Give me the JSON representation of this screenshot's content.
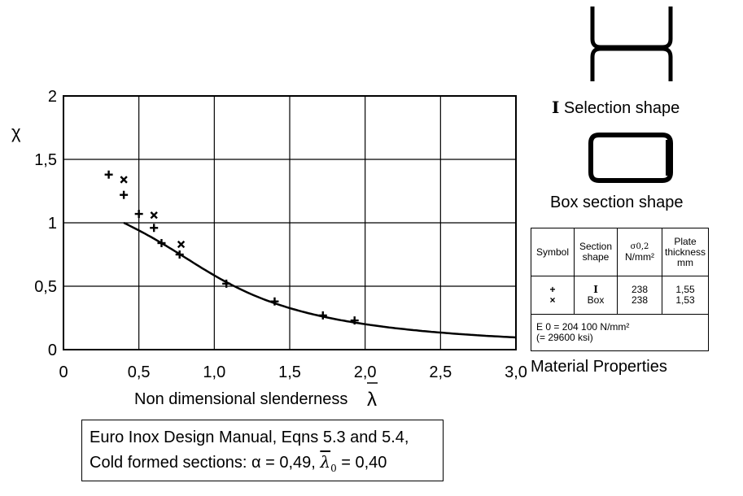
{
  "chart_data": {
    "type": "scatter",
    "xlabel": "Non dimensional slenderness",
    "xlabel_symbol": "λ",
    "ylabel": "χ",
    "xlim": [
      0,
      3.0
    ],
    "ylim": [
      0,
      2
    ],
    "x_ticks": [
      "0",
      "0,5",
      "1,0",
      "1,5",
      "2,0",
      "2,5",
      "3,0"
    ],
    "y_ticks": [
      "0",
      "0,5",
      "1",
      "1,5",
      "2"
    ],
    "grid": true,
    "series": [
      {
        "name": "I",
        "marker": "plus",
        "points": [
          [
            0.3,
            1.38
          ],
          [
            0.4,
            1.22
          ],
          [
            0.5,
            1.07
          ],
          [
            0.6,
            0.96
          ],
          [
            0.65,
            0.84
          ],
          [
            0.77,
            0.75
          ],
          [
            1.08,
            0.52
          ],
          [
            1.4,
            0.38
          ],
          [
            1.72,
            0.27
          ],
          [
            1.93,
            0.23
          ]
        ]
      },
      {
        "name": "Box",
        "marker": "cross",
        "points": [
          [
            0.4,
            1.34
          ],
          [
            0.6,
            1.06
          ],
          [
            0.78,
            0.83
          ]
        ]
      }
    ],
    "curve": {
      "alpha": 0.49,
      "lambda0": 0.4,
      "x_start": 0.4,
      "x_end": 3.0
    }
  },
  "legend": {
    "selection_label": "Selection shape",
    "box_label": "Box section shape",
    "table_headers": {
      "symbol": "Symbol",
      "section_shape": "Section shape",
      "sigma": "σ0,2",
      "sigma_unit": "N/mm²",
      "plate": "Plate thickness",
      "plate_unit": "mm"
    },
    "rows": [
      {
        "symbol": "+",
        "shape": "I",
        "sigma": "238",
        "thickness": "1,55"
      },
      {
        "symbol": "×",
        "shape": "Box",
        "sigma": "238",
        "thickness": "1,53"
      }
    ],
    "modulus_line1": "E 0 = 204 100 N/mm²",
    "modulus_line2": "(= 29600 ksi)",
    "material_properties": "Material Properties"
  },
  "caption": {
    "line1": "Euro Inox Design Manual, Eqns 5.3 and 5.4,",
    "line2_prefix": "Cold formed sections: α = 0,49,",
    "line2_symbol": "λ",
    "line2_sub": "0",
    "line2_suffix": "= 0,40"
  }
}
